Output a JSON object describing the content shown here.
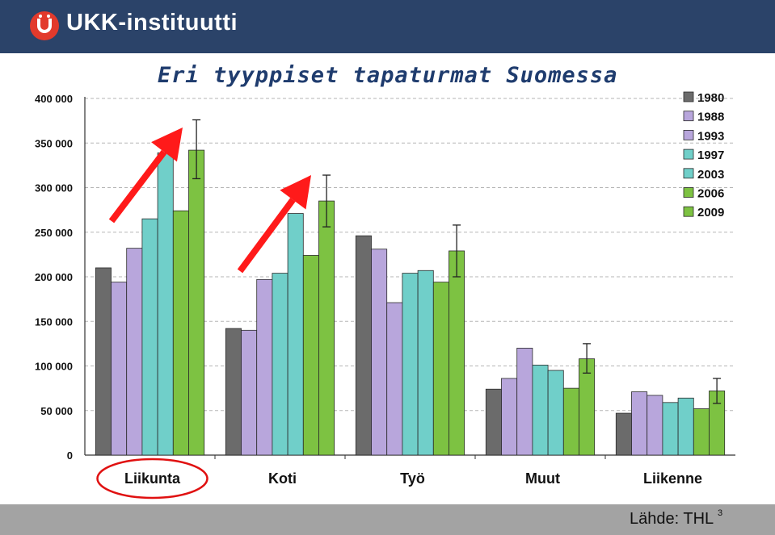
{
  "header": {
    "brand": "UKK-instituutti"
  },
  "title": "Eri tyyppiset tapaturmat Suomessa",
  "footer": {
    "source": "Lähde: THL",
    "slide_number": "3"
  },
  "chart_data": {
    "type": "bar",
    "categories": [
      "Liikunta",
      "Koti",
      "Työ",
      "Muut",
      "Liikenne"
    ],
    "series": [
      {
        "name": "1980",
        "color": "#6b6b6b",
        "values": [
          210000,
          142000,
          246000,
          74000,
          47000
        ]
      },
      {
        "name": "1988",
        "color": "#b8a6dc",
        "values": [
          194000,
          140000,
          231000,
          86000,
          71000
        ]
      },
      {
        "name": "1993",
        "color": "#b8a6dc",
        "values": [
          232000,
          197000,
          171000,
          120000,
          67000
        ]
      },
      {
        "name": "1997",
        "color": "#70cfc9",
        "values": [
          265000,
          204000,
          204000,
          101000,
          59000
        ]
      },
      {
        "name": "2003",
        "color": "#70cfc9",
        "values": [
          339000,
          271000,
          207000,
          95000,
          64000
        ]
      },
      {
        "name": "2006",
        "color": "#7dc242",
        "values": [
          274000,
          224000,
          194000,
          75000,
          52000
        ]
      },
      {
        "name": "2009",
        "color": "#7dc242",
        "values": [
          342000,
          285000,
          229000,
          108000,
          72000
        ]
      }
    ],
    "error_bars_2009": [
      {
        "low": 310000,
        "high": 376000
      },
      {
        "low": 256000,
        "high": 314000
      },
      {
        "low": 200000,
        "high": 258000
      },
      {
        "low": 92000,
        "high": 125000
      },
      {
        "low": 58000,
        "high": 86000
      }
    ],
    "yticks": [
      0,
      50000,
      100000,
      150000,
      200000,
      250000,
      300000,
      350000,
      400000
    ],
    "ytick_labels": [
      "0",
      "50 000",
      "100 000",
      "150 000",
      "200 000",
      "250 000",
      "300 000",
      "350 000",
      "400 000"
    ],
    "ylim": [
      0,
      400000
    ],
    "grid": true,
    "legend_position": "right",
    "highlighted_category": "Liikunta",
    "annotation_colors": {
      "arrow": "#ff1a1a",
      "ellipse": "#e01010"
    }
  }
}
